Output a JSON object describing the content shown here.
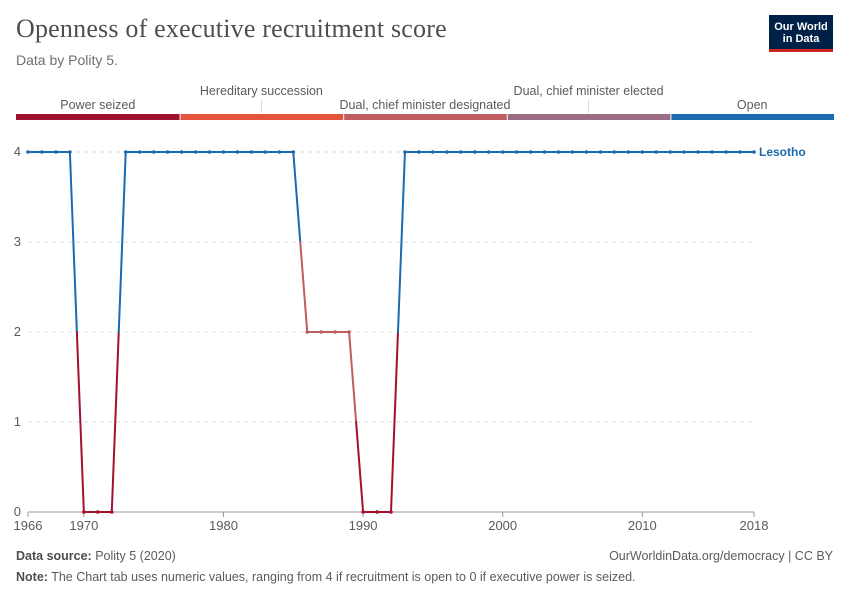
{
  "header": {
    "title": "Openness of executive recruitment score",
    "subtitle": "Data by Polity 5.",
    "logo_line1": "Our World",
    "logo_line2": "in Data"
  },
  "footer": {
    "source_label": "Data source:",
    "source_value": "Polity 5 (2020)",
    "url_license": "OurWorldinData.org/democracy | CC BY",
    "note_label": "Note:",
    "note_value": "The Chart tab uses numeric values, ranging from 4 if recruitment is open to 0 if executive power is seized."
  },
  "legend": {
    "type": "color-bar",
    "categories": [
      {
        "label": "Power seized",
        "color": "#a2122f"
      },
      {
        "label": "Hereditary succession",
        "color": "#e4533e"
      },
      {
        "label": "Dual, chief minister designated",
        "color": "#c05d5e"
      },
      {
        "label": "Dual, chief minister elected",
        "color": "#9a6d84"
      },
      {
        "label": "Open",
        "color": "#1a6bb0"
      }
    ]
  },
  "chart_data": {
    "type": "line",
    "title": "Openness of executive recruitment score",
    "xlabel": "",
    "ylabel": "",
    "xlim": [
      1966,
      2018
    ],
    "ylim": [
      0,
      4
    ],
    "x_ticks": [
      1966,
      1970,
      1980,
      1990,
      2000,
      2010,
      2018
    ],
    "y_ticks": [
      0,
      1,
      2,
      3,
      4
    ],
    "grid": "horizontal-dashed",
    "series": [
      {
        "name": "Lesotho",
        "x": [
          1966,
          1967,
          1968,
          1969,
          1970,
          1971,
          1972,
          1973,
          1974,
          1975,
          1976,
          1977,
          1978,
          1979,
          1980,
          1981,
          1982,
          1983,
          1984,
          1985,
          1986,
          1987,
          1988,
          1989,
          1990,
          1991,
          1992,
          1993,
          1994,
          1995,
          1996,
          1997,
          1998,
          1999,
          2000,
          2001,
          2002,
          2003,
          2004,
          2005,
          2006,
          2007,
          2008,
          2009,
          2010,
          2011,
          2012,
          2013,
          2014,
          2015,
          2016,
          2017,
          2018
        ],
        "y": [
          4,
          4,
          4,
          4,
          0,
          0,
          0,
          4,
          4,
          4,
          4,
          4,
          4,
          4,
          4,
          4,
          4,
          4,
          4,
          4,
          2,
          2,
          2,
          2,
          0,
          0,
          0,
          4,
          4,
          4,
          4,
          4,
          4,
          4,
          4,
          4,
          4,
          4,
          4,
          4,
          4,
          4,
          4,
          4,
          4,
          4,
          4,
          4,
          4,
          4,
          4,
          4,
          4
        ]
      }
    ]
  }
}
